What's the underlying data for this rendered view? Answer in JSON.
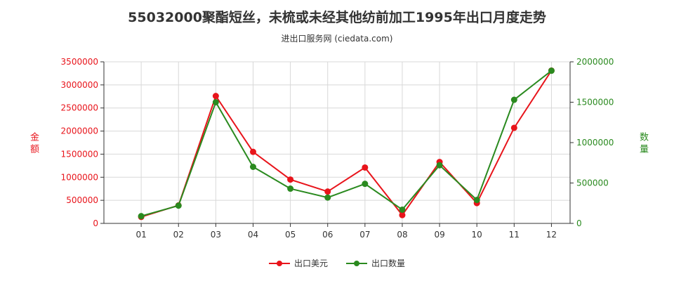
{
  "title": "55032000聚酯短丝，未梳或未经其他纺前加工1995年出口月度走势",
  "subtitle": "进出口服务网 (ciedata.com)",
  "colors": {
    "usd": "#e8141b",
    "qty": "#2a8a1f",
    "grid": "#d8d8d8",
    "axis": "#333333"
  },
  "legend": [
    {
      "label": "出口美元",
      "color": "#e8141b"
    },
    {
      "label": "出口数量",
      "color": "#2a8a1f"
    }
  ],
  "chart_data": {
    "type": "line",
    "categories": [
      "01",
      "02",
      "03",
      "04",
      "05",
      "06",
      "07",
      "08",
      "09",
      "10",
      "11",
      "12"
    ],
    "series": [
      {
        "name": "出口美元",
        "axis": "left",
        "values": [
          140000,
          390000,
          2760000,
          1550000,
          950000,
          690000,
          1210000,
          180000,
          1330000,
          440000,
          2070000,
          3310000
        ]
      },
      {
        "name": "出口数量",
        "axis": "right",
        "values": [
          90000,
          220000,
          1500000,
          700000,
          430000,
          320000,
          490000,
          170000,
          720000,
          290000,
          1530000,
          1890000
        ]
      }
    ],
    "y_left": {
      "label": "金额",
      "min": 0,
      "max": 3500000,
      "ticks": [
        "0",
        "500000",
        "1000000",
        "1500000",
        "2000000",
        "2500000",
        "3000000",
        "3500000"
      ]
    },
    "y_right": {
      "label": "数量",
      "min": 0,
      "max": 2000000,
      "ticks": [
        "0",
        "500000",
        "1000000",
        "1500000",
        "2000000"
      ]
    },
    "grid": true,
    "legend_position": "bottom"
  }
}
